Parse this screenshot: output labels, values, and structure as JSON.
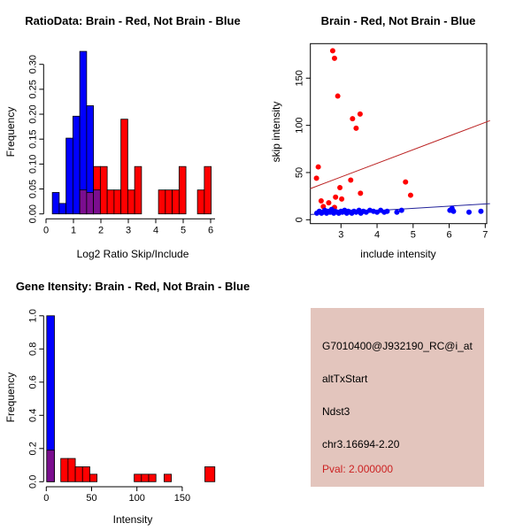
{
  "colors": {
    "blue": "#0000FF",
    "red": "#FF0000",
    "purple": "#7B0E8F",
    "red_line": "#BB2222",
    "blue_line": "#222299",
    "pval_red": "#CC2222",
    "info_bg": "#E3C5BD",
    "axis": "#000000"
  },
  "chart_data": [
    {
      "type": "bar",
      "title": "RatioData: Brain - Red, Not Brain - Blue",
      "xlabel": "Log2 Ratio Skip/Include",
      "ylabel": "Frequency",
      "x_ticks": [
        "0",
        "1",
        "2",
        "3",
        "4",
        "5",
        "6"
      ],
      "y_ticks": [
        "0.00",
        "0.05",
        "0.10",
        "0.15",
        "0.20",
        "0.25",
        "0.30"
      ],
      "xlim": [
        0,
        6.2
      ],
      "ylim": [
        0,
        0.33
      ],
      "grid": false,
      "bars": [
        {
          "x": 0.23,
          "w": 0.25,
          "h": 0.043,
          "color": "blue"
        },
        {
          "x": 0.48,
          "w": 0.25,
          "h": 0.021,
          "color": "blue"
        },
        {
          "x": 0.73,
          "w": 0.25,
          "h": 0.152,
          "color": "blue"
        },
        {
          "x": 0.98,
          "w": 0.25,
          "h": 0.196,
          "color": "blue"
        },
        {
          "x": 1.23,
          "w": 0.25,
          "h": 0.326,
          "color": "blue",
          "overlap": 0.048
        },
        {
          "x": 1.48,
          "w": 0.25,
          "h": 0.217,
          "color": "blue",
          "overlap": 0.043
        },
        {
          "x": 1.73,
          "w": 0.25,
          "h": 0.095,
          "color": "red",
          "overlap": 0.048
        },
        {
          "x": 1.98,
          "w": 0.25,
          "h": 0.095,
          "color": "red"
        },
        {
          "x": 2.23,
          "w": 0.25,
          "h": 0.048,
          "color": "red"
        },
        {
          "x": 2.48,
          "w": 0.25,
          "h": 0.048,
          "color": "red"
        },
        {
          "x": 2.73,
          "w": 0.25,
          "h": 0.19,
          "color": "red"
        },
        {
          "x": 2.98,
          "w": 0.25,
          "h": 0.048,
          "color": "red"
        },
        {
          "x": 3.23,
          "w": 0.25,
          "h": 0.095,
          "color": "red"
        },
        {
          "x": 4.1,
          "w": 0.25,
          "h": 0.048,
          "color": "red"
        },
        {
          "x": 4.35,
          "w": 0.25,
          "h": 0.048,
          "color": "red"
        },
        {
          "x": 4.6,
          "w": 0.25,
          "h": 0.048,
          "color": "red"
        },
        {
          "x": 4.85,
          "w": 0.25,
          "h": 0.095,
          "color": "red"
        },
        {
          "x": 5.52,
          "w": 0.25,
          "h": 0.048,
          "color": "red"
        },
        {
          "x": 5.77,
          "w": 0.25,
          "h": 0.095,
          "color": "red"
        }
      ]
    },
    {
      "type": "scatter",
      "title": "Brain - Red, Not Brain - Blue",
      "xlabel": "include intensity",
      "ylabel": "skip intensity",
      "x_ticks": [
        "3",
        "4",
        "5",
        "6",
        "7"
      ],
      "y_ticks": [
        "0",
        "50",
        "100",
        "150"
      ],
      "xlim": [
        2.15,
        7.13
      ],
      "ylim": [
        -4,
        187
      ],
      "grid": false,
      "legend": "none",
      "series": [
        {
          "name": "Brain",
          "color": "red",
          "points": [
            [
              2.77,
              179
            ],
            [
              2.82,
              171
            ],
            [
              2.91,
              131
            ],
            [
              3.53,
              112
            ],
            [
              3.32,
              107
            ],
            [
              3.42,
              97
            ],
            [
              2.37,
              56
            ],
            [
              2.32,
              44
            ],
            [
              3.27,
              42
            ],
            [
              4.79,
              40
            ],
            [
              2.97,
              34
            ],
            [
              3.54,
              28
            ],
            [
              4.93,
              26
            ],
            [
              2.85,
              24
            ],
            [
              3.02,
              22
            ],
            [
              2.45,
              20
            ],
            [
              2.66,
              18
            ],
            [
              2.51,
              14
            ],
            [
              2.82,
              13
            ]
          ]
        },
        {
          "name": "Not Brain",
          "color": "blue",
          "points": [
            [
              2.33,
              7
            ],
            [
              2.4,
              9
            ],
            [
              2.46,
              7
            ],
            [
              2.5,
              8
            ],
            [
              2.55,
              10
            ],
            [
              2.6,
              7
            ],
            [
              2.64,
              9
            ],
            [
              2.7,
              8
            ],
            [
              2.74,
              11
            ],
            [
              2.8,
              7
            ],
            [
              2.84,
              9
            ],
            [
              2.9,
              8
            ],
            [
              2.94,
              7
            ],
            [
              3.0,
              9
            ],
            [
              3.04,
              8
            ],
            [
              3.1,
              10
            ],
            [
              3.16,
              7
            ],
            [
              3.2,
              9
            ],
            [
              3.26,
              8
            ],
            [
              3.3,
              7
            ],
            [
              3.36,
              9
            ],
            [
              3.42,
              8
            ],
            [
              3.5,
              10
            ],
            [
              3.55,
              7
            ],
            [
              3.62,
              9
            ],
            [
              3.7,
              8
            ],
            [
              3.8,
              10
            ],
            [
              3.9,
              9
            ],
            [
              4.0,
              8
            ],
            [
              4.1,
              10
            ],
            [
              4.2,
              8
            ],
            [
              4.28,
              9
            ],
            [
              4.55,
              8
            ],
            [
              4.68,
              10
            ],
            [
              6.02,
              10
            ],
            [
              6.08,
              12
            ],
            [
              6.12,
              9
            ],
            [
              6.55,
              8
            ],
            [
              6.88,
              9
            ]
          ]
        }
      ],
      "lines": [
        {
          "name": "brain-fit",
          "color": "red_line",
          "x1": 2.15,
          "y1": 33,
          "x2": 7.13,
          "y2": 105
        },
        {
          "name": "notbrain-fit",
          "color": "blue_line",
          "x1": 2.15,
          "y1": 5.5,
          "x2": 7.13,
          "y2": 17
        }
      ]
    },
    {
      "type": "bar",
      "title": "Gene Itensity: Brain - Red, Not Brain - Blue",
      "xlabel": "Intensity",
      "ylabel": "Frequency",
      "x_ticks": [
        "0",
        "50",
        "100",
        "150"
      ],
      "y_ticks": [
        "0.0",
        "0.2",
        "0.4",
        "0.6",
        "0.8",
        "1.0"
      ],
      "xlim": [
        0,
        190
      ],
      "ylim": [
        0,
        1.0
      ],
      "grid": false,
      "bars": [
        {
          "x": 0.5,
          "w": 8.5,
          "h": 1.0,
          "color": "blue",
          "overlap": 0.19
        },
        {
          "x": 16,
          "w": 8,
          "h": 0.14,
          "color": "red"
        },
        {
          "x": 24,
          "w": 8,
          "h": 0.14,
          "color": "red"
        },
        {
          "x": 32,
          "w": 8,
          "h": 0.09,
          "color": "red"
        },
        {
          "x": 40,
          "w": 8,
          "h": 0.09,
          "color": "red"
        },
        {
          "x": 48,
          "w": 8,
          "h": 0.045,
          "color": "red"
        },
        {
          "x": 97,
          "w": 8,
          "h": 0.045,
          "color": "red"
        },
        {
          "x": 105,
          "w": 8,
          "h": 0.045,
          "color": "red"
        },
        {
          "x": 113,
          "w": 8,
          "h": 0.045,
          "color": "red"
        },
        {
          "x": 130,
          "w": 8,
          "h": 0.045,
          "color": "red"
        },
        {
          "x": 175,
          "w": 11,
          "h": 0.09,
          "color": "red"
        }
      ]
    }
  ],
  "info": {
    "probe_id": "G7010400@J932190_RC@i_at",
    "event_type": "altTxStart",
    "gene": "Ndst3",
    "location": "chr3.16694-2.20",
    "pval": "Pval: 2.000000"
  }
}
